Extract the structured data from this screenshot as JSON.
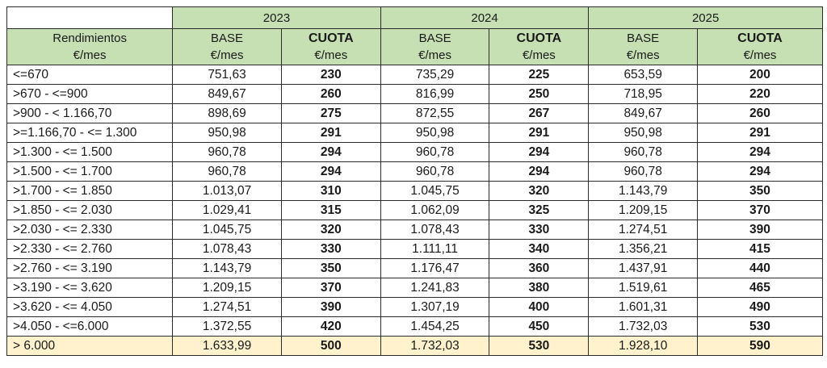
{
  "header": {
    "years": [
      "2023",
      "2024",
      "2025"
    ],
    "range_label": "Rendimientos",
    "range_unit": "€/mes",
    "base_label": "BASE",
    "base_unit": "€/mes",
    "cuota_label": "CUOTA",
    "cuota_unit": "€/mes"
  },
  "rows": [
    {
      "range": "<=670",
      "y2023": {
        "base": "751,63",
        "cuota": "230"
      },
      "y2024": {
        "base": "735,29",
        "cuota": "225"
      },
      "y2025": {
        "base": "653,59",
        "cuota": "200"
      }
    },
    {
      "range": ">670 - <=900",
      "y2023": {
        "base": "849,67",
        "cuota": "260"
      },
      "y2024": {
        "base": "816,99",
        "cuota": "250"
      },
      "y2025": {
        "base": "718,95",
        "cuota": "220"
      }
    },
    {
      "range": ">900 - < 1.166,70",
      "y2023": {
        "base": "898,69",
        "cuota": "275"
      },
      "y2024": {
        "base": "872,55",
        "cuota": "267"
      },
      "y2025": {
        "base": "849,67",
        "cuota": "260"
      }
    },
    {
      "range": ">=1.166,70 - <= 1.300",
      "y2023": {
        "base": "950,98",
        "cuota": "291"
      },
      "y2024": {
        "base": "950,98",
        "cuota": "291"
      },
      "y2025": {
        "base": "950,98",
        "cuota": "291"
      }
    },
    {
      "range": ">1.300 - <= 1.500",
      "y2023": {
        "base": "960,78",
        "cuota": "294"
      },
      "y2024": {
        "base": "960,78",
        "cuota": "294"
      },
      "y2025": {
        "base": "960,78",
        "cuota": "294"
      }
    },
    {
      "range": ">1.500 - <= 1.700",
      "y2023": {
        "base": "960,78",
        "cuota": "294"
      },
      "y2024": {
        "base": "960,78",
        "cuota": "294"
      },
      "y2025": {
        "base": "960,78",
        "cuota": "294"
      }
    },
    {
      "range": ">1.700 - <= 1.850",
      "y2023": {
        "base": "1.013,07",
        "cuota": "310"
      },
      "y2024": {
        "base": "1.045,75",
        "cuota": "320"
      },
      "y2025": {
        "base": "1.143,79",
        "cuota": "350"
      }
    },
    {
      "range": ">1.850 - <= 2.030",
      "y2023": {
        "base": "1.029,41",
        "cuota": "315"
      },
      "y2024": {
        "base": "1.062,09",
        "cuota": "325"
      },
      "y2025": {
        "base": "1.209,15",
        "cuota": "370"
      }
    },
    {
      "range": ">2.030 - <= 2.330",
      "y2023": {
        "base": "1.045,75",
        "cuota": "320"
      },
      "y2024": {
        "base": "1.078,43",
        "cuota": "330"
      },
      "y2025": {
        "base": "1.274,51",
        "cuota": "390"
      }
    },
    {
      "range": ">2.330 - <= 2.760",
      "y2023": {
        "base": "1.078,43",
        "cuota": "330"
      },
      "y2024": {
        "base": "1.111,11",
        "cuota": "340"
      },
      "y2025": {
        "base": "1.356,21",
        "cuota": "415"
      }
    },
    {
      "range": ">2.760 - <= 3.190",
      "y2023": {
        "base": "1.143,79",
        "cuota": "350"
      },
      "y2024": {
        "base": "1.176,47",
        "cuota": "360"
      },
      "y2025": {
        "base": "1.437,91",
        "cuota": "440"
      }
    },
    {
      "range": ">3.190 - <= 3.620",
      "y2023": {
        "base": "1.209,15",
        "cuota": "370"
      },
      "y2024": {
        "base": "1.241,83",
        "cuota": "380"
      },
      "y2025": {
        "base": "1.519,61",
        "cuota": "465"
      }
    },
    {
      "range": ">3.620 - <= 4.050",
      "y2023": {
        "base": "1.274,51",
        "cuota": "390"
      },
      "y2024": {
        "base": "1.307,19",
        "cuota": "400"
      },
      "y2025": {
        "base": "1.601,31",
        "cuota": "490"
      }
    },
    {
      "range": ">4.050 - <=6.000",
      "y2023": {
        "base": "1.372,55",
        "cuota": "420"
      },
      "y2024": {
        "base": "1.454,25",
        "cuota": "450"
      },
      "y2025": {
        "base": "1.732,03",
        "cuota": "530"
      }
    },
    {
      "range": "> 6.000",
      "y2023": {
        "base": "1.633,99",
        "cuota": "500"
      },
      "y2024": {
        "base": "1.732,03",
        "cuota": "530"
      },
      "y2025": {
        "base": "1.928,10",
        "cuota": "590"
      }
    }
  ],
  "colors": {
    "header_green": "#c6e0b4",
    "last_row_highlight": "#fff2cc",
    "border": "#2b2b2b"
  }
}
